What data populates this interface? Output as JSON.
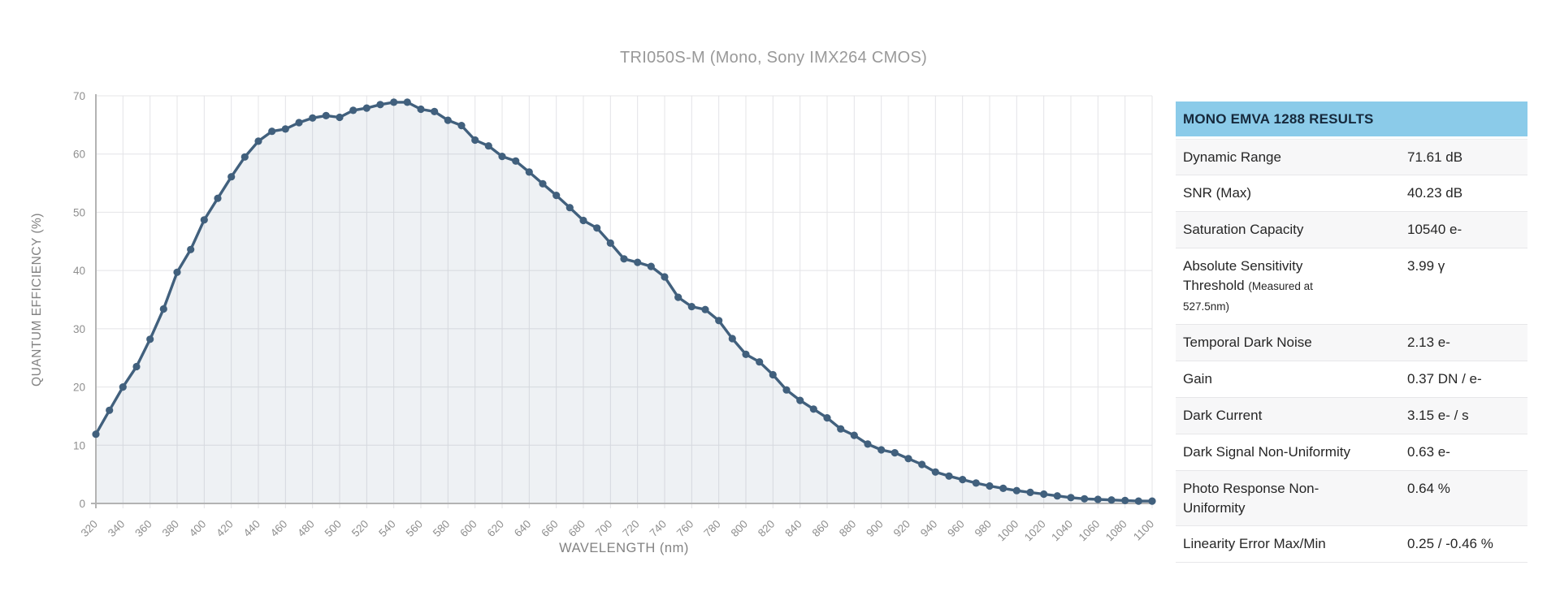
{
  "page": {
    "title": "TRI050S-M (Mono, Sony IMX264 CMOS)"
  },
  "chart_data": {
    "type": "area",
    "title": "TRI050S-M (Mono, Sony IMX264 CMOS)",
    "xlabel": "WAVELENGTH (nm)",
    "ylabel": "QUANTUM EFFICIENCY (%)",
    "xlim": [
      320,
      1100
    ],
    "ylim": [
      0,
      70
    ],
    "xtick_step": 20,
    "ytick_step": 10,
    "grid": true,
    "legend_position": "none",
    "series_name": "Quantum Efficiency (%)",
    "x": [
      320,
      330,
      340,
      350,
      360,
      370,
      380,
      390,
      400,
      410,
      420,
      430,
      440,
      450,
      460,
      470,
      480,
      490,
      500,
      510,
      520,
      530,
      540,
      550,
      560,
      570,
      580,
      590,
      600,
      610,
      620,
      630,
      640,
      650,
      660,
      670,
      680,
      690,
      700,
      710,
      720,
      730,
      740,
      750,
      760,
      770,
      780,
      790,
      800,
      810,
      820,
      830,
      840,
      850,
      860,
      870,
      880,
      890,
      900,
      910,
      920,
      930,
      940,
      950,
      960,
      970,
      980,
      990,
      1000,
      1010,
      1020,
      1030,
      1040,
      1050,
      1060,
      1070,
      1080,
      1090,
      1100
    ],
    "values": [
      11.9,
      16.0,
      20.0,
      23.5,
      28.2,
      33.4,
      39.7,
      43.6,
      48.7,
      52.4,
      56.1,
      59.5,
      62.2,
      63.9,
      64.3,
      65.4,
      66.2,
      66.6,
      66.3,
      67.5,
      67.9,
      68.5,
      68.9,
      68.9,
      67.7,
      67.3,
      65.8,
      64.9,
      62.4,
      61.4,
      59.6,
      58.8,
      56.9,
      54.9,
      52.9,
      50.8,
      48.6,
      47.3,
      44.7,
      42.0,
      41.4,
      40.7,
      38.9,
      35.4,
      33.8,
      33.3,
      31.4,
      28.3,
      25.6,
      24.3,
      22.1,
      19.5,
      17.7,
      16.2,
      14.7,
      12.8,
      11.7,
      10.2,
      9.2,
      8.7,
      7.7,
      6.7,
      5.4,
      4.7,
      4.1,
      3.5,
      3.0,
      2.6,
      2.2,
      1.9,
      1.6,
      1.3,
      1.0,
      0.8,
      0.7,
      0.6,
      0.5,
      0.4,
      0.4
    ]
  },
  "colors": {
    "line": "#41607d",
    "fill": "rgba(90,115,150,0.10)",
    "grid": "#e4e4e7",
    "axis": "#b3b3b3",
    "tick_label": "#8f8f8f",
    "axis_title": "#828282",
    "chart_title": "#999999",
    "table_header_bg": "#8bcbe9",
    "table_header_text": "#16293c",
    "table_row_alt_bg": "#f7f7f8"
  },
  "results_table": {
    "header": "MONO EMVA 1288 RESULTS",
    "rows": [
      {
        "label": "Dynamic Range",
        "note": "",
        "value": "71.61 dB"
      },
      {
        "label": "SNR (Max)",
        "note": "",
        "value": "40.23 dB"
      },
      {
        "label": "Saturation Capacity",
        "note": "",
        "value": "10540 e-"
      },
      {
        "label": "Absolute Sensitivity Threshold",
        "note": "(Measured at 527.5nm)",
        "value": "3.99 γ"
      },
      {
        "label": "Temporal Dark Noise",
        "note": "",
        "value": "2.13 e-"
      },
      {
        "label": "Gain",
        "note": "",
        "value": "0.37 DN / e-"
      },
      {
        "label": "Dark Current",
        "note": "",
        "value": "3.15 e- / s"
      },
      {
        "label": "Dark Signal Non-Uniformity",
        "note": "",
        "value": "0.63 e-"
      },
      {
        "label": "Photo Response Non-Uniformity",
        "note": "",
        "value": "0.64 %"
      },
      {
        "label": "Linearity Error Max/Min",
        "note": "",
        "value": "0.25 / -0.46 %"
      }
    ]
  }
}
